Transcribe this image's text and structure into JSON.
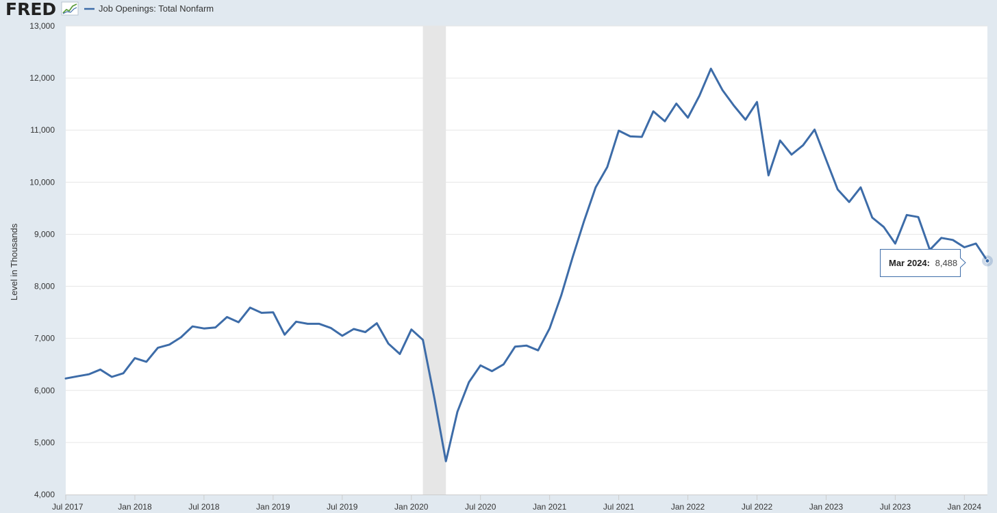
{
  "header": {
    "logo_text": "FRED",
    "legend_label": "Job Openings: Total Nonfarm"
  },
  "tooltip": {
    "label": "Mar 2024:",
    "value": "8,488"
  },
  "colors": {
    "series": "#3d6ca8",
    "recession": "#e6e6e6",
    "background": "#e1e9f0",
    "plot": "#ffffff",
    "grid": "#e6e6e6"
  },
  "chart_data": {
    "type": "line",
    "title": "",
    "ylabel": "Level in Thousands",
    "xlabel": "",
    "ylim": [
      4000,
      13000
    ],
    "yticks": [
      4000,
      5000,
      6000,
      7000,
      8000,
      9000,
      10000,
      11000,
      12000,
      13000
    ],
    "ytick_labels": [
      "4,000",
      "5,000",
      "6,000",
      "7,000",
      "8,000",
      "9,000",
      "10,000",
      "11,000",
      "12,000",
      "13,000"
    ],
    "xlim": [
      "2017-07",
      "2024-03"
    ],
    "xticks": [
      {
        "date": "2017-07",
        "label": "Jul 2017"
      },
      {
        "date": "2018-01",
        "label": "Jan 2018"
      },
      {
        "date": "2018-07",
        "label": "Jul 2018"
      },
      {
        "date": "2019-01",
        "label": "Jan 2019"
      },
      {
        "date": "2019-07",
        "label": "Jul 2019"
      },
      {
        "date": "2020-01",
        "label": "Jan 2020"
      },
      {
        "date": "2020-07",
        "label": "Jul 2020"
      },
      {
        "date": "2021-01",
        "label": "Jan 2021"
      },
      {
        "date": "2021-07",
        "label": "Jul 2021"
      },
      {
        "date": "2022-01",
        "label": "Jan 2022"
      },
      {
        "date": "2022-07",
        "label": "Jul 2022"
      },
      {
        "date": "2023-01",
        "label": "Jan 2023"
      },
      {
        "date": "2023-07",
        "label": "Jul 2023"
      },
      {
        "date": "2024-01",
        "label": "Jan 2024"
      }
    ],
    "grid": true,
    "legend": "top-left",
    "recession": {
      "start": "2020-02",
      "end": "2020-04"
    },
    "series": [
      {
        "name": "Job Openings: Total Nonfarm",
        "x": [
          "2017-07",
          "2017-08",
          "2017-09",
          "2017-10",
          "2017-11",
          "2017-12",
          "2018-01",
          "2018-02",
          "2018-03",
          "2018-04",
          "2018-05",
          "2018-06",
          "2018-07",
          "2018-08",
          "2018-09",
          "2018-10",
          "2018-11",
          "2018-12",
          "2019-01",
          "2019-02",
          "2019-03",
          "2019-04",
          "2019-05",
          "2019-06",
          "2019-07",
          "2019-08",
          "2019-09",
          "2019-10",
          "2019-11",
          "2019-12",
          "2020-01",
          "2020-02",
          "2020-03",
          "2020-04",
          "2020-05",
          "2020-06",
          "2020-07",
          "2020-08",
          "2020-09",
          "2020-10",
          "2020-11",
          "2020-12",
          "2021-01",
          "2021-02",
          "2021-03",
          "2021-04",
          "2021-05",
          "2021-06",
          "2021-07",
          "2021-08",
          "2021-09",
          "2021-10",
          "2021-11",
          "2021-12",
          "2022-01",
          "2022-02",
          "2022-03",
          "2022-04",
          "2022-05",
          "2022-06",
          "2022-07",
          "2022-08",
          "2022-09",
          "2022-10",
          "2022-11",
          "2022-12",
          "2023-01",
          "2023-02",
          "2023-03",
          "2023-04",
          "2023-05",
          "2023-06",
          "2023-07",
          "2023-08",
          "2023-09",
          "2023-10",
          "2023-11",
          "2023-12",
          "2024-01",
          "2024-02",
          "2024-03"
        ],
        "values": [
          6230,
          6270,
          6310,
          6400,
          6260,
          6330,
          6620,
          6550,
          6820,
          6880,
          7020,
          7230,
          7190,
          7210,
          7410,
          7310,
          7590,
          7490,
          7500,
          7070,
          7320,
          7280,
          7280,
          7200,
          7050,
          7180,
          7120,
          7290,
          6900,
          6700,
          7170,
          6970,
          5850,
          4640,
          5590,
          6160,
          6480,
          6370,
          6500,
          6840,
          6860,
          6770,
          7190,
          7820,
          8560,
          9260,
          9900,
          10290,
          10990,
          10880,
          10870,
          11360,
          11170,
          11510,
          11240,
          11660,
          12180,
          11770,
          11470,
          11200,
          11540,
          10130,
          10800,
          10530,
          10710,
          11010,
          10430,
          9860,
          9620,
          9900,
          9320,
          9140,
          8820,
          9370,
          9330,
          8700,
          8930,
          8890,
          8750,
          8820,
          8488
        ]
      }
    ]
  }
}
